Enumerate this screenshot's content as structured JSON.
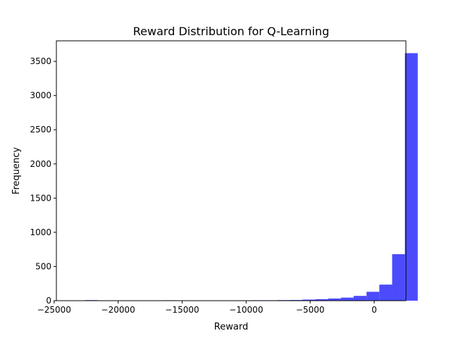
{
  "chart_data": {
    "type": "bar",
    "title": "Reward Distribution for Q-Learning",
    "xlabel": "Reward",
    "ylabel": "Frequency",
    "bar_color": "#4b4bfc",
    "xlim": [
      -24825,
      2475
    ],
    "ylim": [
      0,
      3800
    ],
    "xticks": [
      -25000,
      -20000,
      -15000,
      -10000,
      -5000,
      0
    ],
    "xtick_labels": [
      "−25000",
      "−20000",
      "−15000",
      "−10000",
      "−5000",
      "0"
    ],
    "yticks": [
      0,
      500,
      1000,
      1500,
      2000,
      2500,
      3000,
      3500
    ],
    "ytick_labels": [
      "0",
      "500",
      "1000",
      "1500",
      "2000",
      "2500",
      "3000",
      "3500"
    ],
    "bin_start": -23600,
    "bin_width": 1000,
    "values": [
      0,
      8,
      0,
      0,
      0,
      0,
      0,
      6,
      0,
      5,
      0,
      0,
      0,
      5,
      6,
      6,
      8,
      10,
      16,
      22,
      32,
      45,
      70,
      130,
      235,
      680,
      3620
    ]
  }
}
